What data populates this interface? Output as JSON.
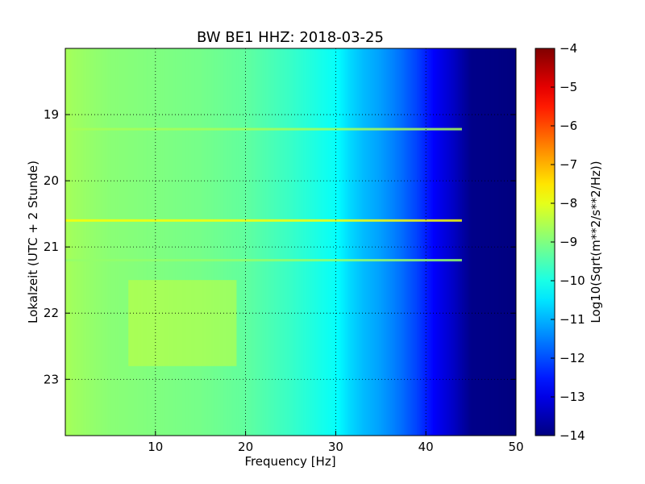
{
  "chart_data": {
    "type": "heatmap",
    "title": "BW BE1 HHZ: 2018-03-25",
    "xlabel": "Frequency [Hz]",
    "ylabel": "Lokalzeit (UTC + 2 Stunde)",
    "xlim": [
      0,
      50
    ],
    "ylim": [
      18.0,
      23.85
    ],
    "x_ticks": [
      10,
      20,
      30,
      40,
      50
    ],
    "x_tick_labels": [
      "10",
      "20",
      "30",
      "40",
      "50"
    ],
    "y_ticks": [
      19,
      20,
      21,
      22,
      23
    ],
    "y_tick_labels": [
      "19",
      "20",
      "21",
      "22",
      "23"
    ],
    "y_inverted": true,
    "grid": true,
    "grid_style": "dotted",
    "colormap": "jet",
    "colorbar": {
      "label": "Log10(Sqrt(m**2/s**2/Hz))",
      "range": [
        -14,
        -4
      ],
      "ticks": [
        -4,
        -5,
        -6,
        -7,
        -8,
        -9,
        -10,
        -11,
        -12,
        -13,
        -14
      ],
      "tick_labels": [
        "−4",
        "−5",
        "−6",
        "−7",
        "−8",
        "−9",
        "−10",
        "−11",
        "−12",
        "−13",
        "−14"
      ]
    },
    "spectrum_profile": {
      "frequency_hz": [
        0,
        1,
        5,
        10,
        15,
        20,
        25,
        28,
        30,
        31.5,
        33,
        35,
        37,
        39,
        41,
        43,
        45,
        50
      ],
      "log10_amplitude": [
        -8.6,
        -8.7,
        -8.9,
        -9.0,
        -9.1,
        -9.3,
        -9.7,
        -10.0,
        -10.2,
        -10.6,
        -10.9,
        -11.2,
        -11.6,
        -12.1,
        -12.8,
        -13.3,
        -13.9,
        -14.0
      ]
    },
    "time_lines": [
      {
        "time": 19.22,
        "log10_amplitude": -8.6
      },
      {
        "time": 20.6,
        "log10_amplitude": -7.8
      },
      {
        "time": 21.2,
        "log10_amplitude": -8.8
      }
    ],
    "activity_regions": [
      {
        "freq_range": [
          7,
          19
        ],
        "time_range": [
          21.5,
          22.8
        ],
        "log10_amplitude": -8.3
      }
    ]
  }
}
